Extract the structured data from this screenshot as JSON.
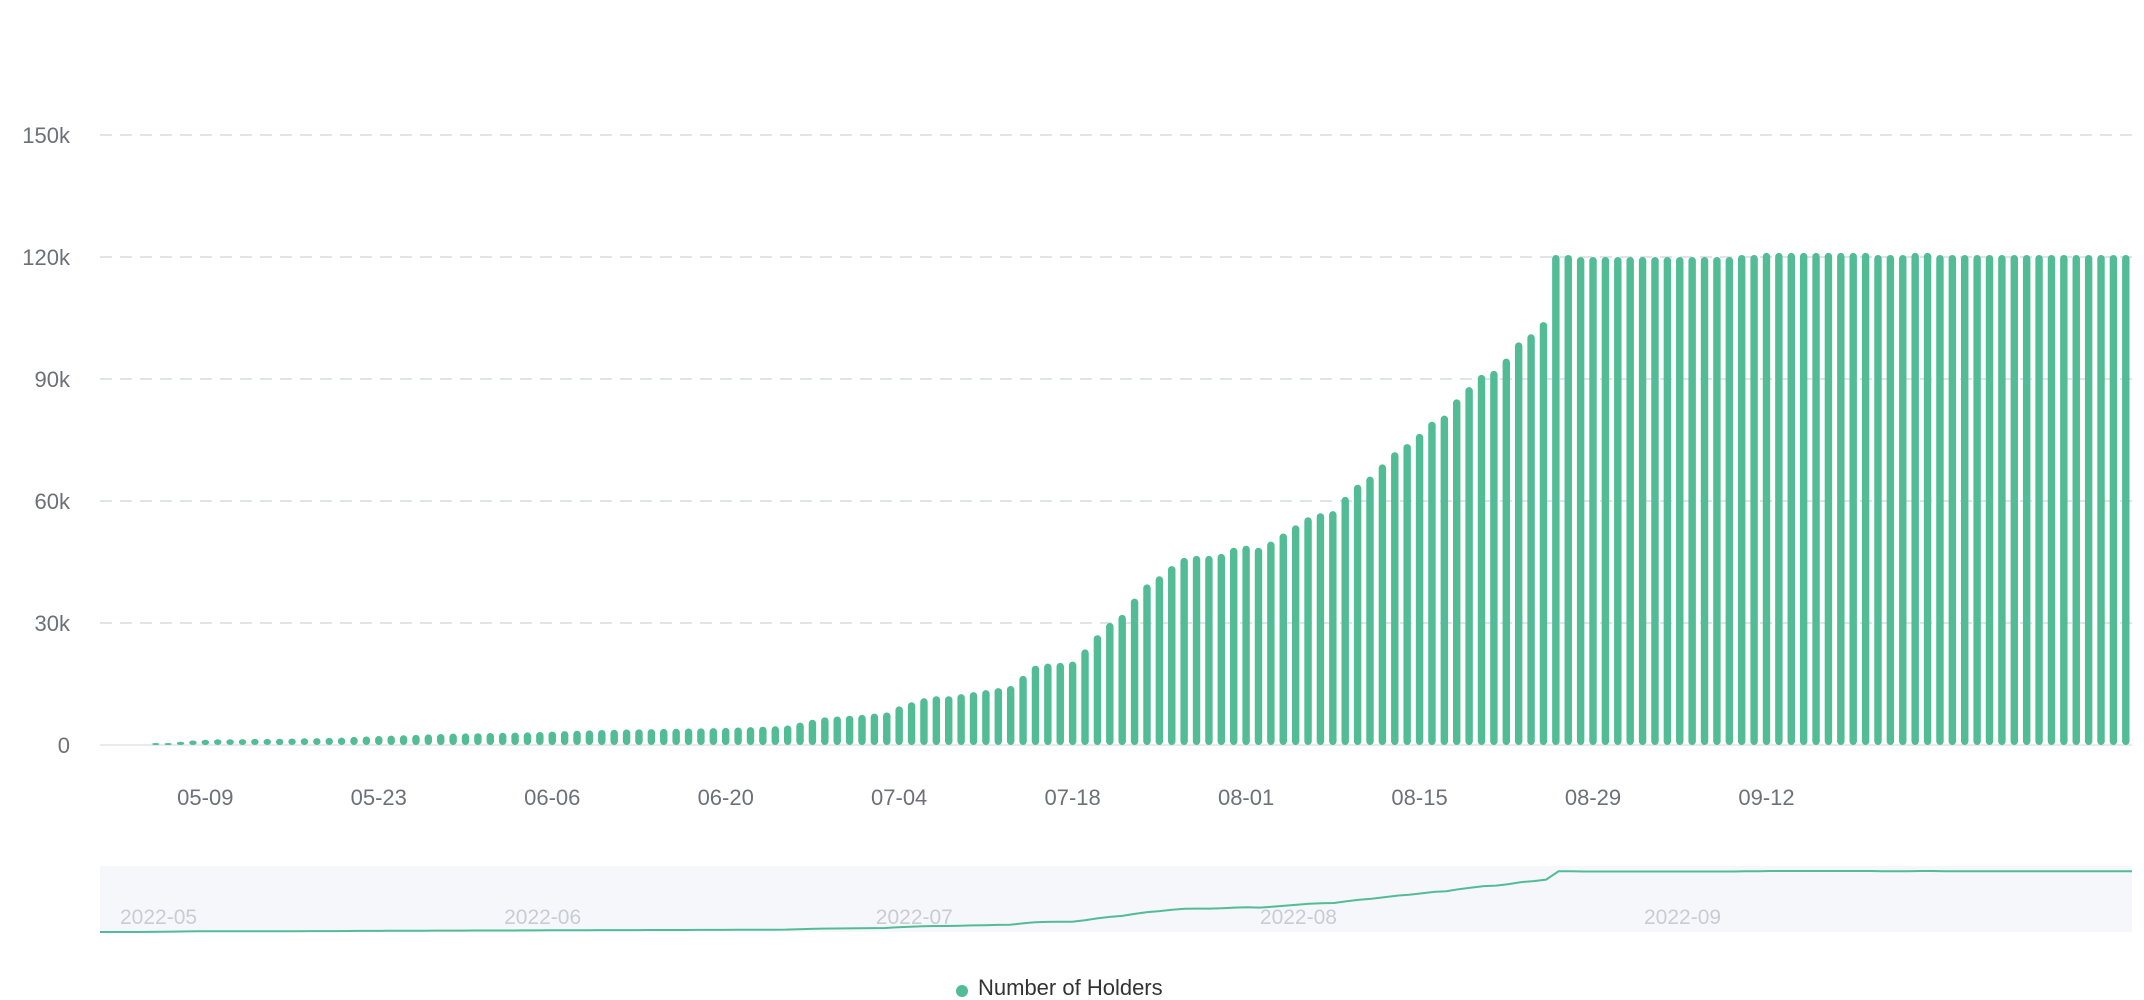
{
  "chart_data": {
    "type": "bar",
    "title": "",
    "xlabel": "",
    "ylabel": "",
    "ylim": [
      0,
      150000
    ],
    "y_ticks": [
      0,
      30000,
      60000,
      90000,
      120000,
      150000
    ],
    "y_tick_labels": [
      "0",
      "30k",
      "60k",
      "90k",
      "120k",
      "150k"
    ],
    "x_start": "2022-05-01",
    "x_tick_labels": [
      "05-09",
      "05-23",
      "06-06",
      "06-20",
      "07-04",
      "07-18",
      "08-01",
      "08-15",
      "08-29",
      "09-12"
    ],
    "grid": true,
    "legend_position": "bottom-center",
    "bar_color": "#52bc97",
    "datazoom": {
      "labels": [
        "2022-05",
        "2022-06",
        "2022-07",
        "2022-08",
        "2022-09"
      ],
      "line_color": "#52bc97",
      "background": "#f5f7fa"
    },
    "series": [
      {
        "name": "Number of Holders",
        "values": [
          0,
          0,
          0,
          0,
          150,
          400,
          800,
          1100,
          1300,
          1400,
          1400,
          1450,
          1500,
          1500,
          1550,
          1600,
          1650,
          1700,
          1750,
          1800,
          2000,
          2100,
          2200,
          2300,
          2400,
          2500,
          2600,
          2700,
          2800,
          2850,
          2900,
          2950,
          3000,
          3050,
          3100,
          3200,
          3300,
          3400,
          3500,
          3600,
          3700,
          3750,
          3800,
          3850,
          3900,
          3950,
          4000,
          4050,
          4100,
          4150,
          4200,
          4300,
          4400,
          4500,
          4600,
          4800,
          5500,
          6200,
          6800,
          7000,
          7200,
          7400,
          7700,
          8000,
          9500,
          10500,
          11500,
          12000,
          12000,
          12500,
          13000,
          13500,
          14000,
          14500,
          17000,
          19500,
          20000,
          20200,
          20500,
          23500,
          27000,
          30000,
          32000,
          36000,
          39500,
          41500,
          44000,
          46000,
          46500,
          46500,
          47000,
          48500,
          49000,
          48500,
          50000,
          52000,
          54000,
          56000,
          57000,
          57500,
          61000,
          64000,
          66000,
          69000,
          72000,
          74000,
          76500,
          79500,
          81000,
          85000,
          88000,
          91000,
          92000,
          95000,
          99000,
          101000,
          104000,
          120500,
          120500,
          120000,
          120000,
          120000,
          120000,
          120000,
          120000,
          120000,
          120000,
          120000,
          120000,
          120000,
          120000,
          120000,
          120500,
          120500,
          121000,
          121000,
          121000,
          121000,
          121000,
          121000,
          121000,
          121000,
          121000,
          120500,
          120500,
          120500,
          121000,
          121000,
          120500,
          120500,
          120500,
          120500,
          120500,
          120500,
          120500,
          120500,
          120500,
          120500,
          120500,
          120500,
          120500,
          120500,
          120500,
          120500
        ]
      }
    ]
  }
}
